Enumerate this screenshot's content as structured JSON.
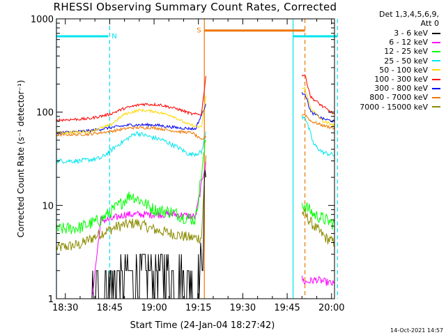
{
  "chart_data": {
    "type": "line",
    "title": "RHESSI Observing Summary Count Rates, Corrected",
    "xlabel": "Start Time (24-Jan-04 18:27:42)",
    "ylabel": "Corrected Count Rate (s⁻¹ detector⁻¹)",
    "yscale": "log",
    "ylim": [
      1,
      1000
    ],
    "xlim_minutes": [
      -3,
      91
    ],
    "xticks": [
      {
        "m": 0,
        "label": "18:30"
      },
      {
        "m": 15,
        "label": "18:45"
      },
      {
        "m": 30,
        "label": "19:00"
      },
      {
        "m": 45,
        "label": "19:15"
      },
      {
        "m": 60,
        "label": "19:30"
      },
      {
        "m": 75,
        "label": "19:45"
      },
      {
        "m": 90,
        "label": "20:00"
      }
    ],
    "yticks": [
      {
        "v": 1,
        "label": "1"
      },
      {
        "v": 10,
        "label": "10"
      },
      {
        "v": 100,
        "label": "100"
      },
      {
        "v": 1000,
        "label": "1000"
      }
    ],
    "legend_header": [
      "Det 1,3,4,5,6,9,",
      "Att 0"
    ],
    "legend_position": "right",
    "date_stamp": "14-Oct-2021 14:57",
    "flags": [
      {
        "label": "N",
        "color": "#00e5ee",
        "level": 650,
        "from": -3,
        "to": 14.5
      },
      {
        "label": "S",
        "color": "#ee7600",
        "level": 750,
        "from": 47,
        "to": 81
      },
      {
        "label": "",
        "color": "#00e5ee",
        "level": 650,
        "from": 77,
        "to": 92
      }
    ],
    "vlines": [
      {
        "m": -3,
        "color": "#00e5ee",
        "dashed": false
      },
      {
        "m": 15,
        "color": "#00e5ee",
        "dashed": true
      },
      {
        "m": 47,
        "color": "#ee7600",
        "dashed": false
      },
      {
        "m": 77,
        "color": "#00e5ee",
        "dashed": false
      },
      {
        "m": 81,
        "color": "#ee7600",
        "dashed": true
      },
      {
        "m": 92,
        "color": "#00e5ee",
        "dashed": true
      }
    ],
    "segments": [
      [
        -3,
        47.5
      ],
      [
        80,
        92
      ]
    ],
    "series": [
      {
        "name": "3 - 6 keV",
        "color": "#000000",
        "noise": 0.35,
        "points": [
          [
            9,
            1
          ],
          [
            12,
            1.3
          ],
          [
            18,
            1.7
          ],
          [
            25,
            2.0
          ],
          [
            30,
            2.0
          ],
          [
            36,
            2.0
          ],
          [
            40,
            1.6
          ],
          [
            44,
            1.5
          ],
          [
            46,
            2.4
          ],
          [
            47.5,
            25
          ]
        ]
      },
      {
        "name": "6 - 12 keV",
        "color": "#ff00ff",
        "noise": 0.08,
        "points": [
          [
            9,
            1
          ],
          [
            12,
            7
          ],
          [
            15,
            7
          ],
          [
            20,
            8
          ],
          [
            30,
            8
          ],
          [
            38,
            8
          ],
          [
            44,
            7.5
          ],
          [
            47.5,
            30
          ],
          [
            81,
            1.5
          ],
          [
            85,
            1.6
          ],
          [
            92,
            1.4
          ]
        ]
      },
      {
        "name": "12 - 25 keV",
        "color": "#00ff00",
        "noise": 0.14,
        "points": [
          [
            -3,
            5.5
          ],
          [
            5,
            5.8
          ],
          [
            12,
            7
          ],
          [
            18,
            10
          ],
          [
            22,
            13
          ],
          [
            26,
            11
          ],
          [
            30,
            9
          ],
          [
            36,
            8.5
          ],
          [
            40,
            7.5
          ],
          [
            44,
            7
          ],
          [
            47.5,
            50
          ],
          [
            81,
            10
          ],
          [
            84,
            8
          ],
          [
            88,
            7
          ],
          [
            92,
            6
          ]
        ]
      },
      {
        "name": "25 - 50 keV",
        "color": "#00e5ee",
        "noise": 0.05,
        "points": [
          [
            -3,
            30
          ],
          [
            5,
            30
          ],
          [
            12,
            32
          ],
          [
            18,
            45
          ],
          [
            24,
            60
          ],
          [
            28,
            55
          ],
          [
            33,
            50
          ],
          [
            38,
            42
          ],
          [
            42,
            35
          ],
          [
            46,
            37
          ],
          [
            47.5,
            60
          ],
          [
            81,
            90
          ],
          [
            84,
            45
          ],
          [
            87,
            37
          ],
          [
            92,
            34
          ]
        ]
      },
      {
        "name": "50 - 100 keV",
        "color": "#ffd700",
        "noise": 0.03,
        "points": [
          [
            -3,
            60
          ],
          [
            8,
            62
          ],
          [
            15,
            72
          ],
          [
            20,
            95
          ],
          [
            25,
            105
          ],
          [
            30,
            102
          ],
          [
            36,
            92
          ],
          [
            41,
            75
          ],
          [
            46,
            68
          ],
          [
            47.5,
            150
          ],
          [
            81,
            180
          ],
          [
            83,
            110
          ],
          [
            87,
            80
          ],
          [
            92,
            70
          ]
        ]
      },
      {
        "name": "100 - 300 keV",
        "color": "#ff0000",
        "noise": 0.03,
        "points": [
          [
            -3,
            82
          ],
          [
            8,
            85
          ],
          [
            15,
            95
          ],
          [
            20,
            110
          ],
          [
            26,
            122
          ],
          [
            32,
            120
          ],
          [
            38,
            108
          ],
          [
            43,
            95
          ],
          [
            46,
            95
          ],
          [
            47.5,
            240
          ],
          [
            81,
            250
          ],
          [
            83,
            145
          ],
          [
            87,
            115
          ],
          [
            92,
            90
          ]
        ]
      },
      {
        "name": "300 - 800 keV",
        "color": "#0000ee",
        "noise": 0.03,
        "points": [
          [
            -3,
            60
          ],
          [
            8,
            63
          ],
          [
            15,
            68
          ],
          [
            22,
            73
          ],
          [
            30,
            73
          ],
          [
            38,
            68
          ],
          [
            44,
            66
          ],
          [
            47.5,
            120
          ],
          [
            81,
            160
          ],
          [
            83,
            100
          ],
          [
            87,
            85
          ],
          [
            92,
            78
          ]
        ]
      },
      {
        "name": "800 - 7000 keV",
        "color": "#ee7600",
        "noise": 0.03,
        "points": [
          [
            -3,
            57
          ],
          [
            8,
            58
          ],
          [
            15,
            62
          ],
          [
            22,
            68
          ],
          [
            30,
            68
          ],
          [
            38,
            62
          ],
          [
            43,
            60
          ],
          [
            46,
            50
          ],
          [
            47.5,
            55
          ],
          [
            81,
            95
          ],
          [
            83,
            80
          ],
          [
            87,
            72
          ],
          [
            92,
            66
          ]
        ]
      },
      {
        "name": "7000 - 15000 keV",
        "color": "#8b8b00",
        "noise": 0.12,
        "points": [
          [
            -3,
            3.5
          ],
          [
            5,
            3.8
          ],
          [
            12,
            5
          ],
          [
            18,
            6
          ],
          [
            24,
            6.5
          ],
          [
            30,
            5.5
          ],
          [
            36,
            5
          ],
          [
            42,
            4.5
          ],
          [
            46,
            4.5
          ],
          [
            47.5,
            35
          ],
          [
            81,
            8
          ],
          [
            84,
            6
          ],
          [
            88,
            4.5
          ],
          [
            92,
            3.8
          ]
        ]
      }
    ]
  }
}
